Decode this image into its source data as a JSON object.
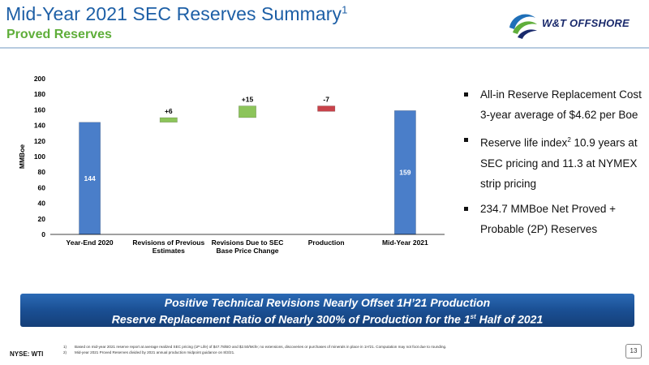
{
  "header": {
    "title": "Mid-Year 2021 SEC Reserves Summary",
    "title_sup": "1",
    "subtitle": "Proved Reserves",
    "logo_text": "W&T OFFSHORE",
    "logo_icon": "swirl-logo-icon"
  },
  "colors": {
    "title": "#1d5fa6",
    "subtitle": "#5fae3a",
    "bar_blue": "#4a7ec9",
    "bar_green": "#8cc45a",
    "bar_red": "#c8424a",
    "banner": "#1a4f93"
  },
  "chart_data": {
    "type": "bar",
    "subtype": "waterfall",
    "ylabel": "MMBoe",
    "ylim": [
      0,
      200
    ],
    "yticks": [
      0,
      20,
      40,
      60,
      80,
      100,
      120,
      140,
      160,
      180,
      200
    ],
    "grid": false,
    "categories": [
      [
        "Year-End 2020"
      ],
      [
        "Revisions of Previous",
        "Estimates"
      ],
      [
        "Revisions Due to SEC",
        "Base Price Change"
      ],
      [
        "Production"
      ],
      [
        "Mid-Year 2021"
      ]
    ],
    "bars": [
      {
        "kind": "total",
        "base": 0,
        "value": 144,
        "label": "144",
        "label_position": "inside",
        "color": "#4a7ec9"
      },
      {
        "kind": "increase",
        "base": 144,
        "value": 6,
        "label": "+6",
        "label_position": "above",
        "color": "#8cc45a"
      },
      {
        "kind": "increase",
        "base": 150,
        "value": 15,
        "label": "+15",
        "label_position": "above",
        "color": "#8cc45a"
      },
      {
        "kind": "decrease",
        "base": 165,
        "value": -7,
        "label": "-7",
        "label_position": "above",
        "color": "#c8424a"
      },
      {
        "kind": "total",
        "base": 0,
        "value": 159,
        "label": "159",
        "label_position": "inside",
        "color": "#4a7ec9"
      }
    ]
  },
  "bullets": [
    {
      "text": "All-in Reserve Replacement Cost 3-year average of $4.62 per Boe"
    },
    {
      "pre": "Reserve life index",
      "sup": "2",
      "post": " 10.9 years at SEC pricing and 11.3 at NYMEX strip pricing"
    },
    {
      "text": "234.7 MMBoe Net Proved + Probable (2P) Reserves"
    }
  ],
  "banner": {
    "line1": "Positive Technical Revisions Nearly Offset 1H’21 Production",
    "line2_pre": "Reserve Replacement Ratio of Nearly 300% of Production for the 1",
    "line2_sup": "st",
    "line2_post": " Half of 2021"
  },
  "footnotes": [
    {
      "num": "1)",
      "text": "Based on mid-year 2021 reserve report at average realized SEC pricing (1P Life) of $47.78/BO and $2.50/Mcfe; no extensions, discoveries or purchases of minerals in place in 1H'21. Computation may not foot due to rounding."
    },
    {
      "num": "2)",
      "text": "Mid-year 2021 Proved Reserves divided by 2021 annual production midpoint guidance on 8/3/21."
    }
  ],
  "footer": {
    "ticker": "NYSE:  WTI",
    "page": "13"
  }
}
